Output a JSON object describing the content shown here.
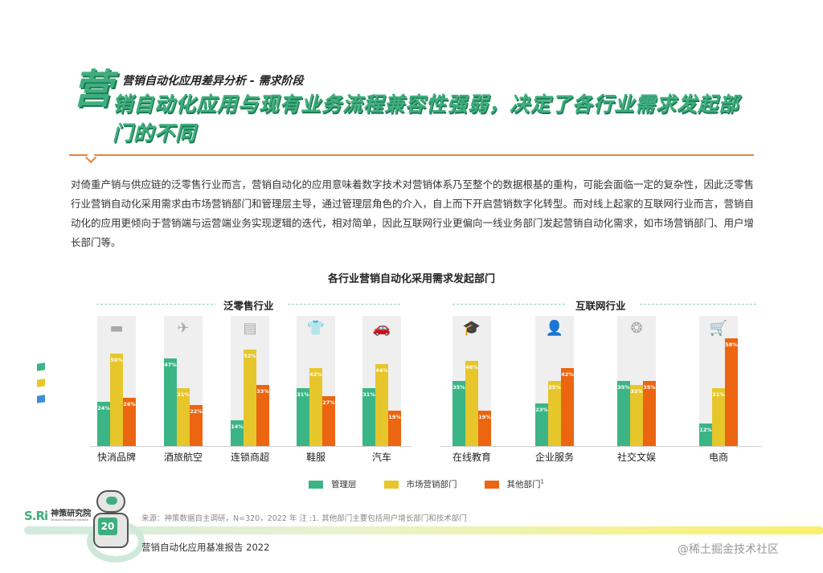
{
  "header": {
    "big_char": "营",
    "subtitle": "营销自动化应用差异分析 - 需求阶段",
    "headline": "销自动化应用与现有业务流程兼容性强弱，决定了各行业需求发起部门的不同"
  },
  "body_text": "对倚重产销与供应链的泛零售行业而言，营销自动化的应用意味着数字技术对营销体系乃至整个的数据根基的重构，可能会面临一定的复杂性，因此泛零售行业营销自动化采用需求由市场营销部门和管理层主导，通过管理层角色的介入，自上而下开启营销数字化转型。而对线上起家的互联网行业而言，营销自动化的应用更倾向于营销端与运营端业务实现逻辑的迭代，相对简单，因此互联网行业更偏向一线业务部门发起营销自动化需求，如市场营销部门、用户增长部门等。",
  "chart_data": {
    "type": "bar",
    "title": "各行业营销自动化采用需求发起部门",
    "xlabel": "",
    "ylabel": "",
    "ylim": [
      0,
      70
    ],
    "grid": false,
    "legend_position": "bottom",
    "sections": [
      {
        "label": "泛零售行业",
        "categories": [
          "快消品牌",
          "酒旅航空",
          "连锁商超",
          "鞋服",
          "汽车"
        ]
      },
      {
        "label": "互联网行业",
        "categories": [
          "在线教育",
          "企业服务",
          "社交文娱",
          "电商"
        ]
      }
    ],
    "categories": [
      "快消品牌",
      "酒旅航空",
      "连锁商超",
      "鞋服",
      "汽车",
      "在线教育",
      "企业服务",
      "社交文娱",
      "电商"
    ],
    "series": [
      {
        "name": "管理层",
        "color": "#3bb585",
        "values": [
          24,
          47,
          14,
          31,
          31,
          35,
          23,
          35,
          12
        ]
      },
      {
        "name": "市场营销部门",
        "color": "#e6c62b",
        "values": [
          50,
          31,
          52,
          42,
          44,
          46,
          35,
          33,
          31
        ]
      },
      {
        "name": "其他部门",
        "color": "#ec6511",
        "values": [
          26,
          22,
          33,
          27,
          19,
          19,
          42,
          35,
          58
        ]
      }
    ],
    "value_format": "{v}%"
  },
  "chart": {
    "section_retail": "泛零售行业",
    "section_internet": "互联网行业",
    "groups": [
      {
        "cat": "快消品牌",
        "icon": "tissue-box-icon",
        "glyph": "▬",
        "v": [
          "24%",
          "50%",
          "26%"
        ]
      },
      {
        "cat": "酒旅航空",
        "icon": "airplane-icon",
        "glyph": "✈",
        "v": [
          "47%",
          "31%",
          "22%"
        ]
      },
      {
        "cat": "连锁商超",
        "icon": "storefront-icon",
        "glyph": "▤",
        "v": [
          "14%",
          "52%",
          "33%"
        ]
      },
      {
        "cat": "鞋服",
        "icon": "tshirt-icon",
        "glyph": "👕",
        "v": [
          "31%",
          "42%",
          "27%"
        ]
      },
      {
        "cat": "汽车",
        "icon": "car-icon",
        "glyph": "🚗",
        "v": [
          "31%",
          "44%",
          "19%"
        ]
      },
      {
        "cat": "在线教育",
        "icon": "graduation-cap-icon",
        "glyph": "🎓",
        "v": [
          "35%",
          "46%",
          "19%"
        ]
      },
      {
        "cat": "企业服务",
        "icon": "businessman-icon",
        "glyph": "👤",
        "v": [
          "23%",
          "35%",
          "42%"
        ]
      },
      {
        "cat": "社交文娱",
        "icon": "film-reel-icon",
        "glyph": "❂",
        "v": [
          "35%",
          "33%",
          "35%"
        ]
      },
      {
        "cat": "电商",
        "icon": "shopping-cart-icon",
        "glyph": "🛒",
        "v": [
          "12%",
          "31%",
          "58%"
        ]
      }
    ]
  },
  "legend": {
    "items": [
      {
        "label": "管理层",
        "color": "#3bb585"
      },
      {
        "label": "市场营销部门",
        "color": "#e6c62b"
      },
      {
        "label": "其他部门",
        "color": "#ec6511",
        "sup": "1"
      }
    ]
  },
  "side_marks": [
    "#3bb585",
    "#e6c62b",
    "#3b8fd9"
  ],
  "footer": {
    "logo_mark": "S.Ri",
    "logo_cn": "神策研究院",
    "logo_en": "Sensors Research Institute",
    "robot_badge": "20",
    "source": "来源：神策数据自主调研，N=320，2022 年   注 :1. 其他部门主要包括用户增长部门和技术部门",
    "report_title": "营销自动化应用基准报告 2022",
    "credit": "@稀土掘金技术社区"
  }
}
